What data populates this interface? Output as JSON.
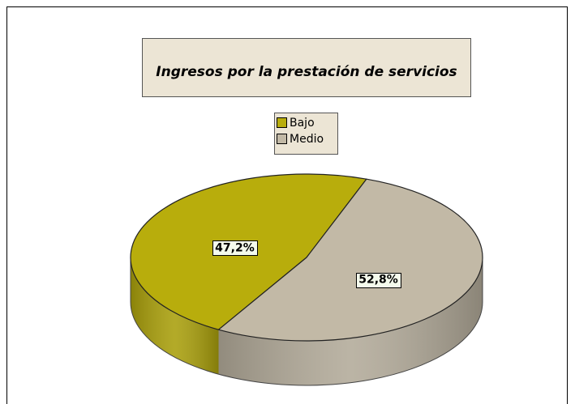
{
  "chart_data": {
    "type": "pie",
    "title": "Ingresos por la prestación de servicios",
    "categories": [
      "Bajo",
      "Medio"
    ],
    "values": [
      47.2,
      52.8
    ],
    "value_labels": [
      "47,2%",
      "52,8%"
    ],
    "colors": [
      "#b8ad0c",
      "#c2b9a6"
    ],
    "legend": "top"
  }
}
